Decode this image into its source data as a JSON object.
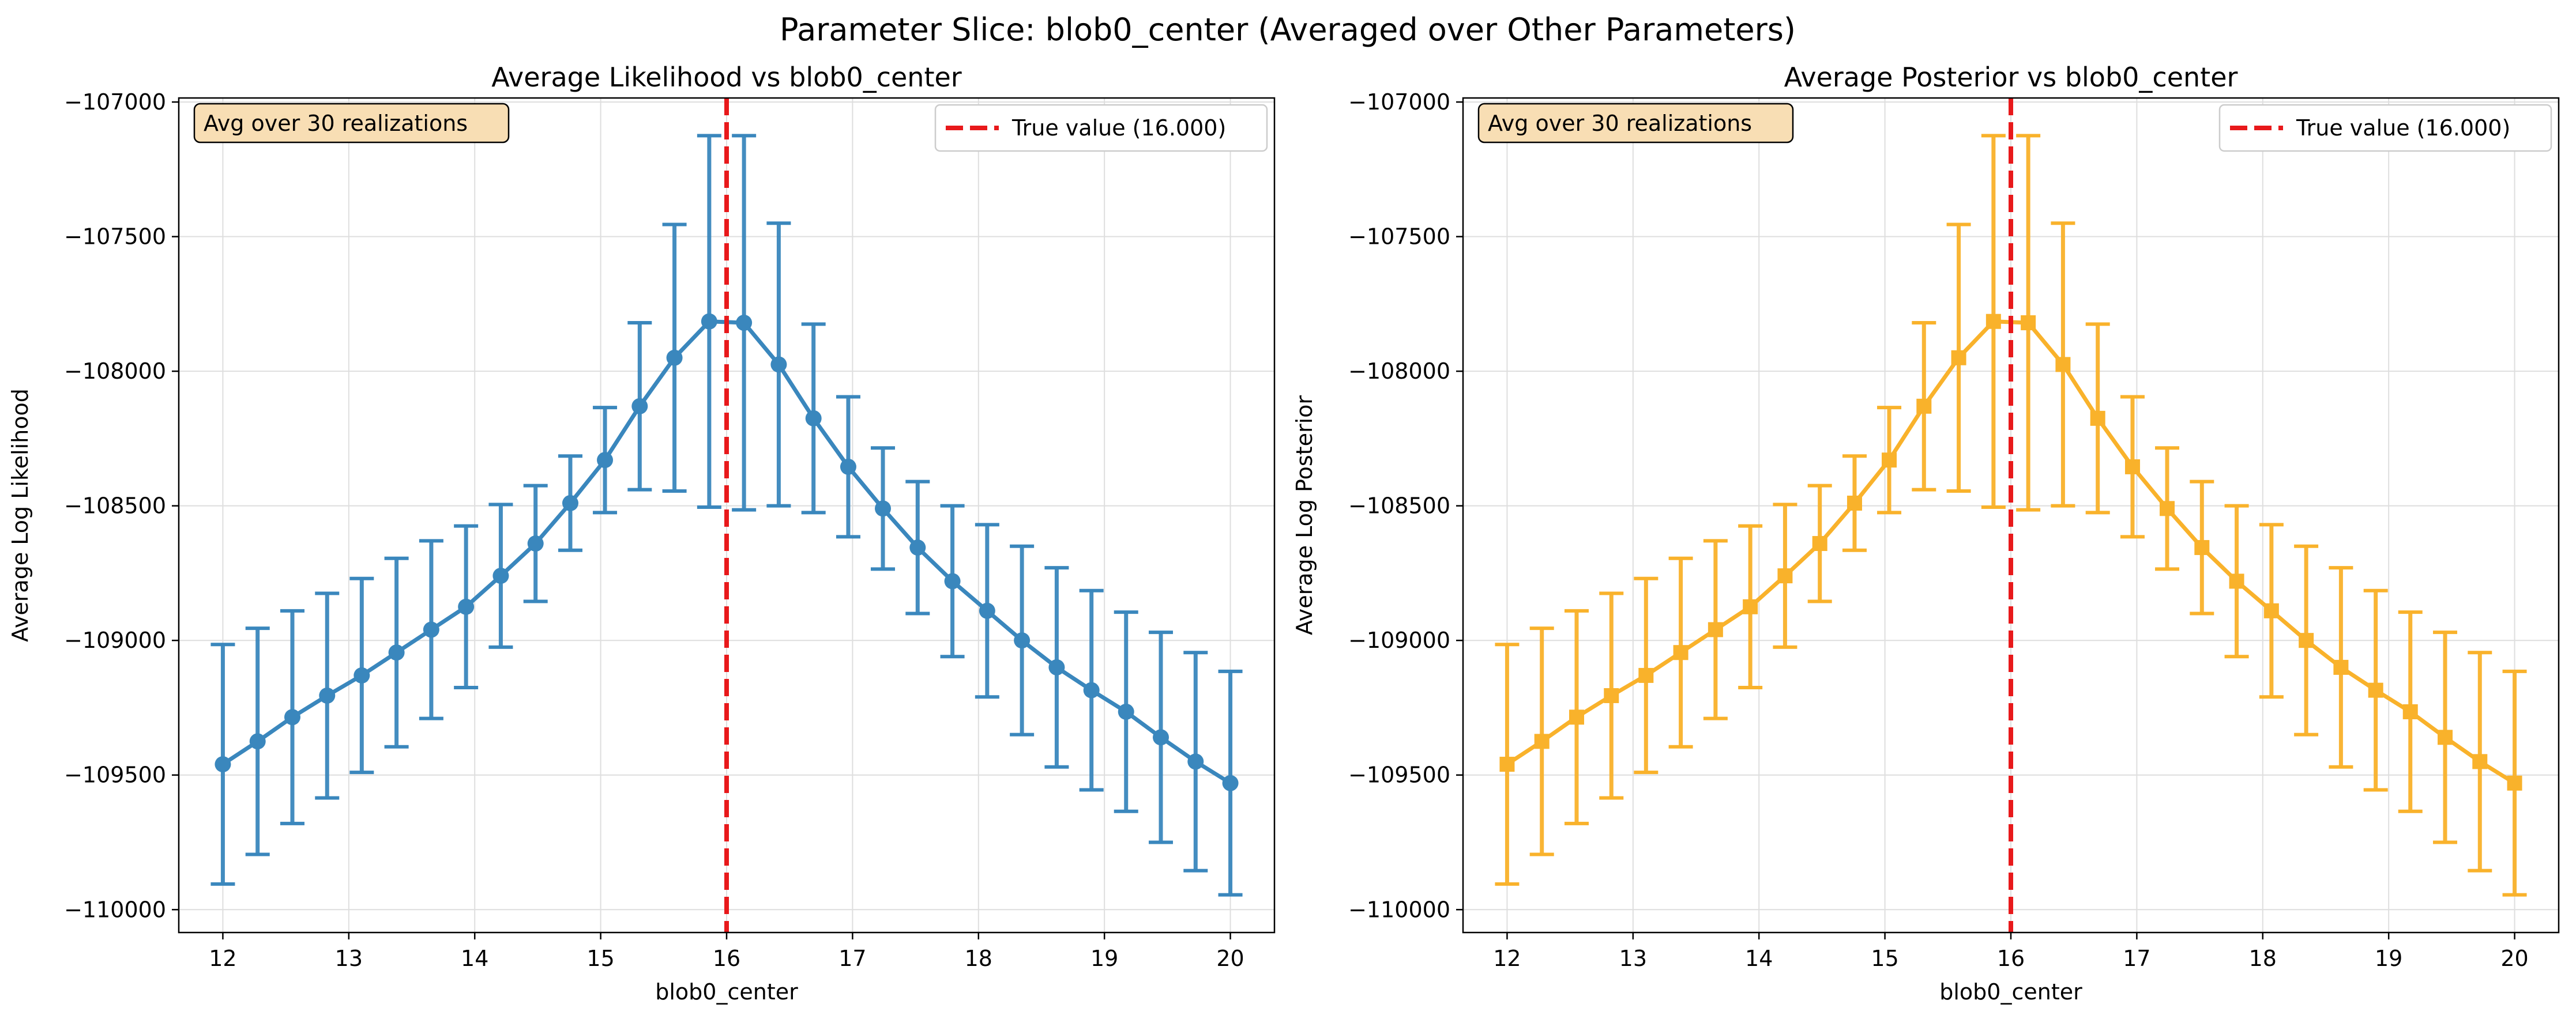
{
  "figure": {
    "suptitle": "Parameter Slice: blob0_center (Averaged over Other Parameters)"
  },
  "chart_data": [
    {
      "type": "line",
      "title": "Average Likelihood vs blob0_center",
      "xlabel": "blob0_center",
      "ylabel": "Average Log Likelihood",
      "xlim": [
        11.65,
        20.35
      ],
      "ylim": [
        -110085,
        -106985
      ],
      "xticks": [
        12,
        13,
        14,
        15,
        16,
        17,
        18,
        19,
        20
      ],
      "yticks": [
        -110000,
        -109500,
        -109000,
        -108500,
        -108000,
        -107500,
        -107000
      ],
      "grid": true,
      "legend_position": "top-right",
      "annotation": "Avg over 30 realizations",
      "vline": {
        "x": 16.0,
        "label": "True value (16.000)",
        "color": "#e8191b"
      },
      "series": [
        {
          "color": "#3a87bd",
          "marker": "circle",
          "x": [
            12.0,
            12.276,
            12.552,
            12.828,
            13.103,
            13.379,
            13.655,
            13.931,
            14.207,
            14.483,
            14.759,
            15.034,
            15.31,
            15.586,
            15.862,
            16.138,
            16.414,
            16.69,
            16.966,
            17.241,
            17.517,
            17.793,
            18.069,
            18.345,
            18.621,
            18.897,
            19.172,
            19.448,
            19.724,
            20.0
          ],
          "y": [
            -109460,
            -109375,
            -109285,
            -109205,
            -109130,
            -109045,
            -108960,
            -108875,
            -108760,
            -108640,
            -108490,
            -108330,
            -108130,
            -107950,
            -107815,
            -107820,
            -107975,
            -108175,
            -108355,
            -108510,
            -108655,
            -108780,
            -108890,
            -109000,
            -109100,
            -109185,
            -109265,
            -109360,
            -109450,
            -109530
          ],
          "err": [
            445,
            420,
            395,
            380,
            360,
            350,
            330,
            300,
            265,
            215,
            175,
            195,
            310,
            495,
            690,
            695,
            525,
            350,
            260,
            225,
            245,
            280,
            320,
            350,
            370,
            370,
            370,
            390,
            405,
            415
          ]
        }
      ]
    },
    {
      "type": "line",
      "title": "Average Posterior vs blob0_center",
      "xlabel": "blob0_center",
      "ylabel": "Average Log Posterior",
      "xlim": [
        11.65,
        20.35
      ],
      "ylim": [
        -110085,
        -106985
      ],
      "xticks": [
        12,
        13,
        14,
        15,
        16,
        17,
        18,
        19,
        20
      ],
      "yticks": [
        -110000,
        -109500,
        -109000,
        -108500,
        -108000,
        -107500,
        -107000
      ],
      "grid": true,
      "legend_position": "top-right",
      "annotation": "Avg over 30 realizations",
      "vline": {
        "x": 16.0,
        "label": "True value (16.000)",
        "color": "#e8191b"
      },
      "series": [
        {
          "color": "#f9b22b",
          "marker": "square",
          "x": [
            12.0,
            12.276,
            12.552,
            12.828,
            13.103,
            13.379,
            13.655,
            13.931,
            14.207,
            14.483,
            14.759,
            15.034,
            15.31,
            15.586,
            15.862,
            16.138,
            16.414,
            16.69,
            16.966,
            17.241,
            17.517,
            17.793,
            18.069,
            18.345,
            18.621,
            18.897,
            19.172,
            19.448,
            19.724,
            20.0
          ],
          "y": [
            -109460,
            -109375,
            -109285,
            -109205,
            -109130,
            -109045,
            -108960,
            -108875,
            -108760,
            -108640,
            -108490,
            -108330,
            -108130,
            -107950,
            -107815,
            -107820,
            -107975,
            -108175,
            -108355,
            -108510,
            -108655,
            -108780,
            -108890,
            -109000,
            -109100,
            -109185,
            -109265,
            -109360,
            -109450,
            -109530
          ],
          "err": [
            445,
            420,
            395,
            380,
            360,
            350,
            330,
            300,
            265,
            215,
            175,
            195,
            310,
            495,
            690,
            695,
            525,
            350,
            260,
            225,
            245,
            280,
            320,
            350,
            370,
            370,
            370,
            390,
            405,
            415
          ]
        }
      ]
    }
  ]
}
